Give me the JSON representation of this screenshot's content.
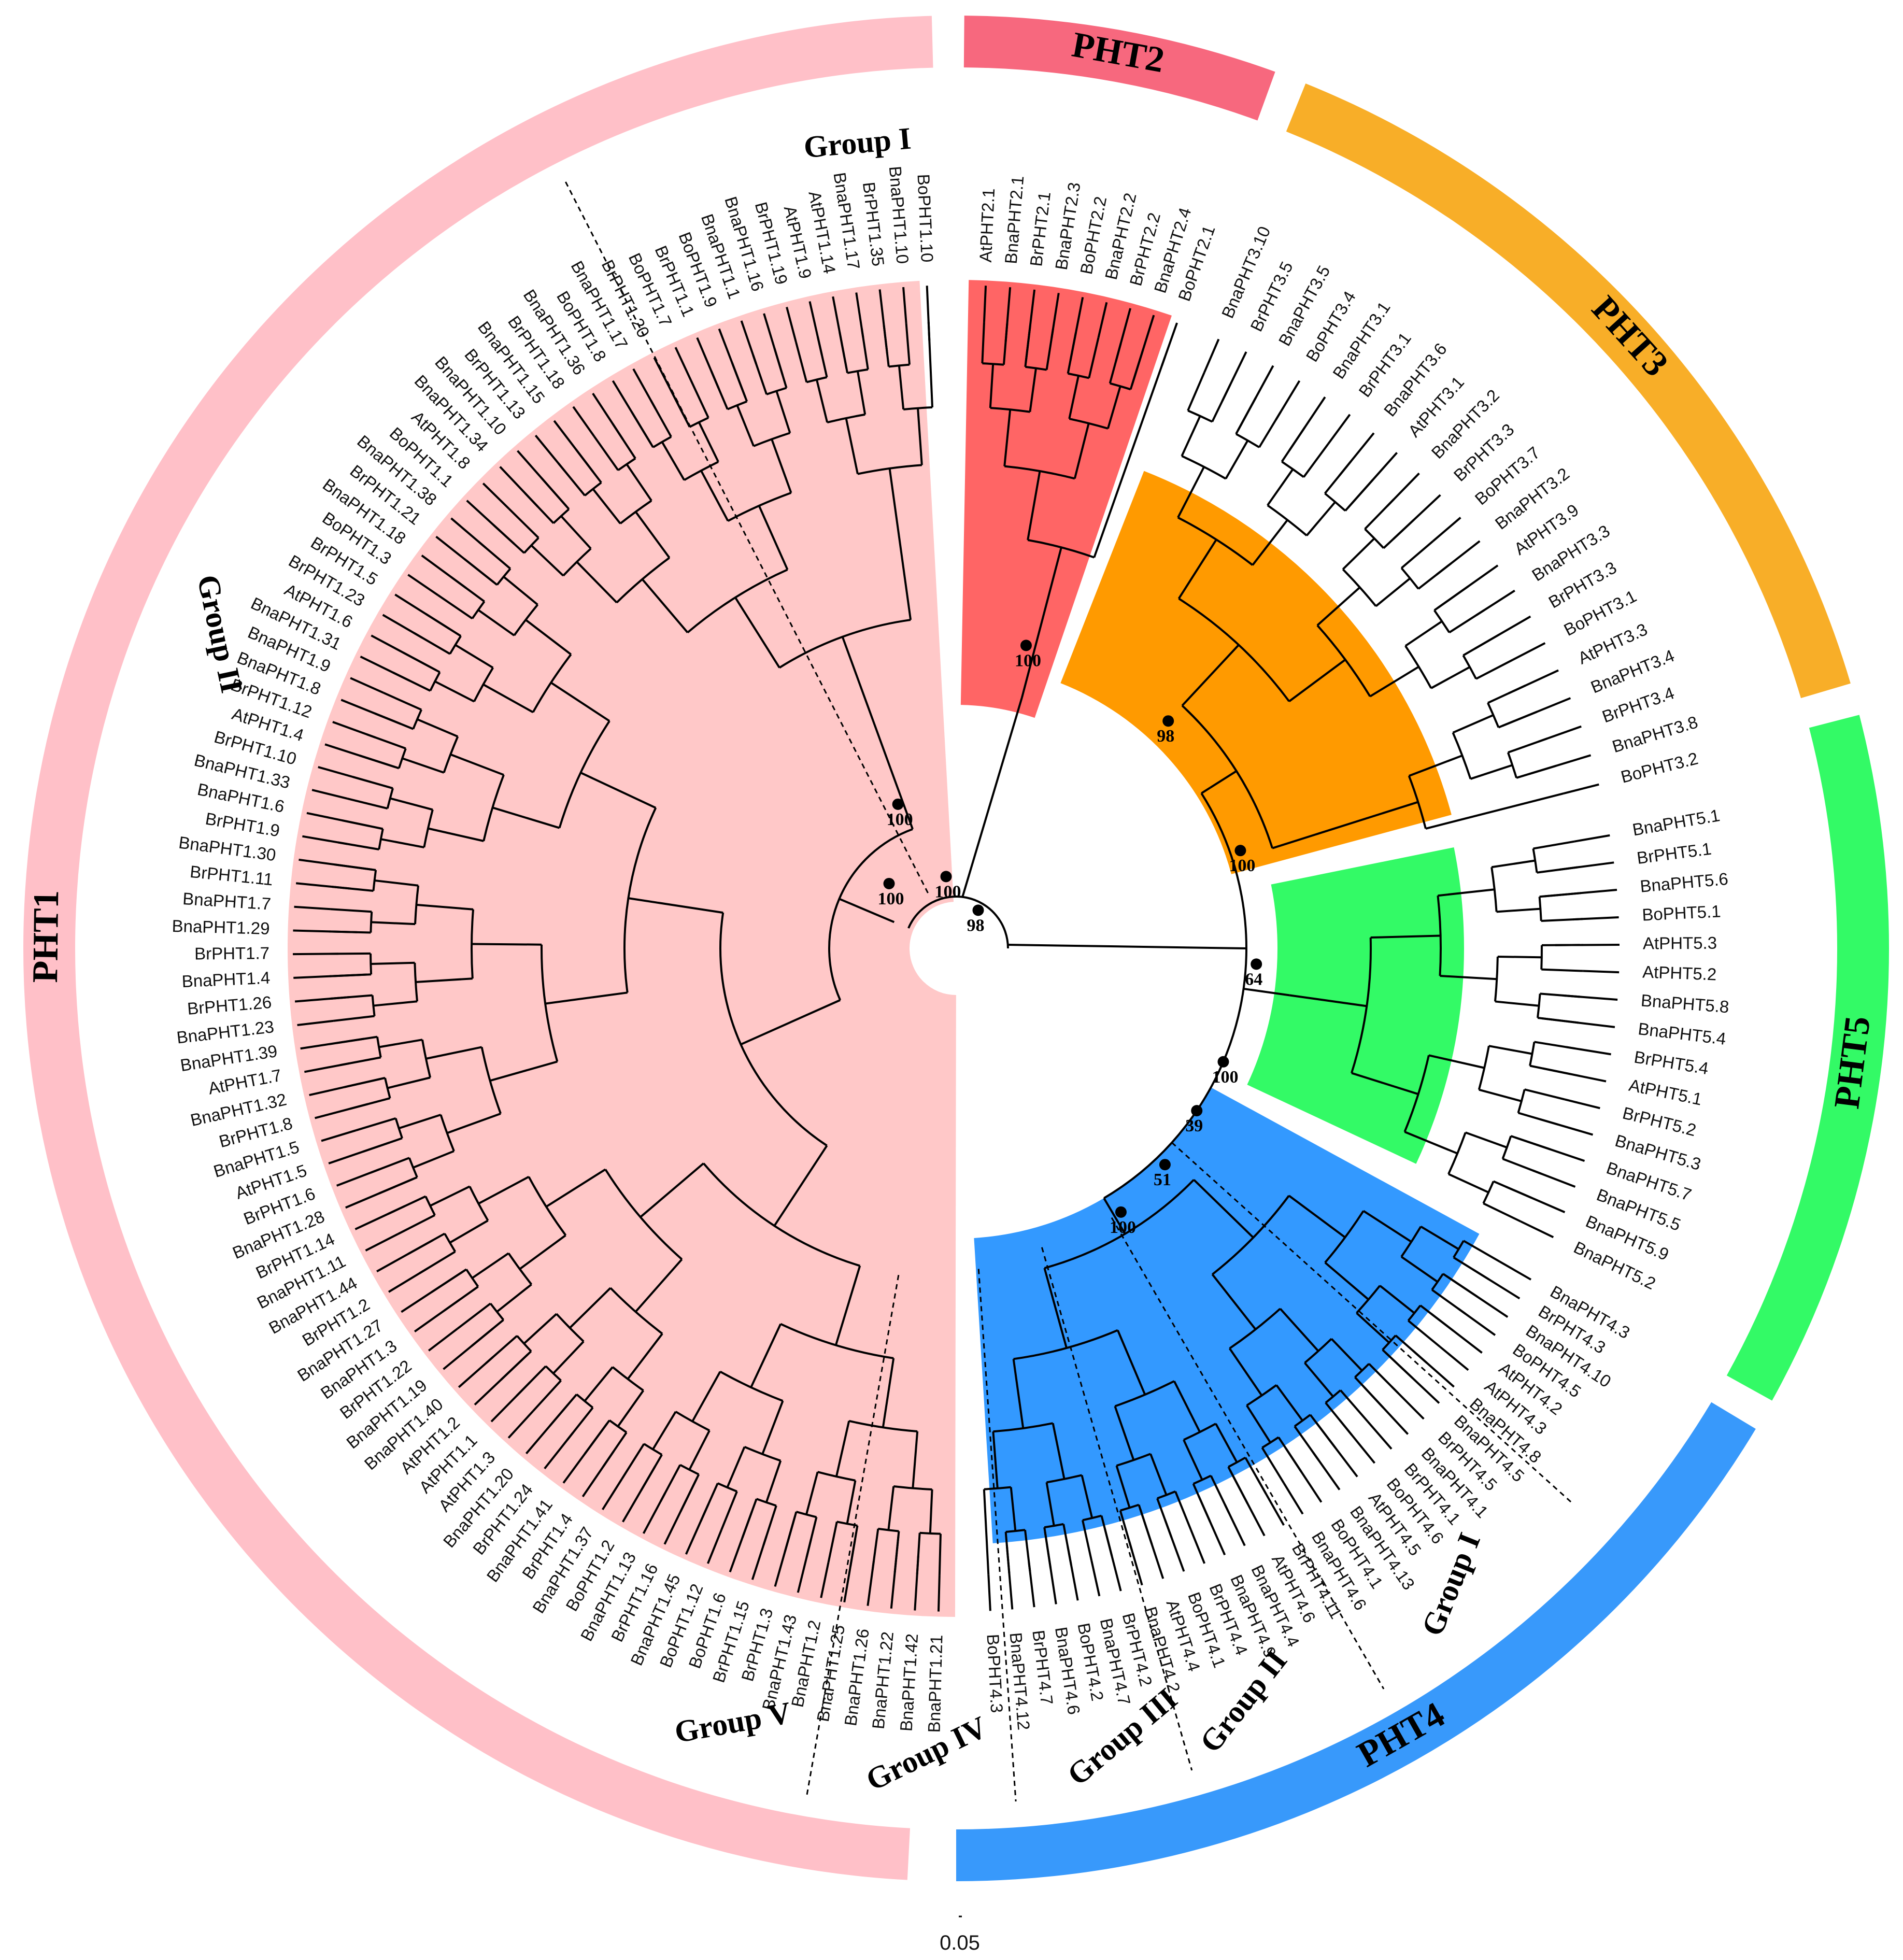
{
  "families": [
    {
      "label": "PHT1",
      "color": "#ffc0c8",
      "wedge": "#ffc8c8"
    },
    {
      "label": "PHT2",
      "color": "#f7687e",
      "wedge": "#ff6565"
    },
    {
      "label": "PHT3",
      "color": "#f8ae28",
      "wedge": "#ff9a00"
    },
    {
      "label": "PHT5",
      "color": "#33fa66",
      "wedge": "#33fa66"
    },
    {
      "label": "PHT4",
      "color": "#3899fb",
      "wedge": "#3399ff"
    }
  ],
  "groups": [
    "Group I",
    "Group II",
    "Group I",
    "Group II",
    "Group III",
    "Group IV",
    "Group V"
  ],
  "bootstraps": [
    "100",
    "100",
    "100",
    "98",
    "100",
    "98",
    "100",
    "64",
    "100",
    "39",
    "51",
    "100"
  ],
  "scale_label": "0.05",
  "leaves": {
    "pht1": [
      "BnaPHT1.21",
      "BnaPHT1.42",
      "BnaPHT1.22",
      "BnaPHT1.26",
      "BnaPHT1.25",
      "BnaPHT1.2",
      "BnaPHT1.43",
      "BrPHT1.3",
      "BrPHT1.15",
      "BoPHT1.6",
      "BoPHT1.12",
      "BnaPHT1.45",
      "BrPHT1.16",
      "BnaPHT1.13",
      "BoPHT1.2",
      "BnaPHT1.37",
      "BrPHT1.4",
      "BnaPHT1.41",
      "BrPHT1.24",
      "BnaPHT1.20",
      "AtPHT1.3",
      "AtPHT1.1",
      "AtPHT1.2",
      "BnaPHT1.40",
      "BnaPHT1.19",
      "BrPHT1.22",
      "BnaPHT1.3",
      "BnaPHT1.27",
      "BrPHT1.2",
      "BnaPHT1.44",
      "BnaPHT1.11",
      "BrPHT1.14",
      "BnaPHT1.28",
      "BrPHT1.6",
      "AtPHT1.5",
      "BnaPHT1.5",
      "BrPHT1.8",
      "BnaPHT1.32",
      "AtPHT1.7",
      "BnaPHT1.39",
      "BnaPHT1.23",
      "BrPHT1.26",
      "BnaPHT1.4",
      "BrPHT1.7",
      "BnaPHT1.29",
      "BnaPHT1.7",
      "BrPHT1.11",
      "BnaPHT1.30",
      "BrPHT1.9",
      "BnaPHT1.6",
      "BnaPHT1.33",
      "BrPHT1.10",
      "AtPHT1.4",
      "BrPHT1.12",
      "BnaPHT1.8",
      "BnaPHT1.9",
      "BnaPHT1.31",
      "AtPHT1.6",
      "BrPHT1.23",
      "BrPHT1.5",
      "BoPHT1.3",
      "BnaPHT1.18",
      "BrPHT1.21",
      "BnaPHT1.38",
      "BoPHT1.1",
      "AtPHT1.8",
      "BnaPHT1.34",
      "BnaPHT1.10",
      "BrPHT1.13",
      "BnaPHT1.15",
      "BrPHT1.18",
      "BnaPHT1.36",
      "BoPHT1.8",
      "BnaPHT1.17",
      "BrPHT1.20",
      "BoPHT1.7",
      "BrPHT1.1",
      "BoPHT1.9",
      "BnaPHT1.1",
      "BnaPHT1.16",
      "BrPHT1.19",
      "AtPHT1.9",
      "AtPHT1.14",
      "BnaPHT1.17",
      "BrPHT1.35",
      "BnaPHT1.10",
      "BoPHT1.10"
    ],
    "pht2": [
      "AtPHT2.1",
      "BnaPHT2.1",
      "BrPHT2.1",
      "BnaPHT2.3",
      "BoPHT2.2",
      "BnaPHT2.2",
      "BrPHT2.2",
      "BnaPHT2.4",
      "BoPHT2.1"
    ],
    "pht3": [
      "BnaPHT3.10",
      "BrPHT3.5",
      "BnaPHT3.5",
      "BoPHT3.4",
      "BnaPHT3.1",
      "BrPHT3.1",
      "BnaPHT3.6",
      "AtPHT3.1",
      "BnaPHT3.2",
      "BrPHT3.3",
      "BoPHT3.7",
      "BnaPHT3.2",
      "AtPHT3.9",
      "BnaPHT3.3",
      "BrPHT3.3",
      "BoPHT3.1",
      "AtPHT3.3",
      "BnaPHT3.4",
      "BrPHT3.4",
      "BnaPHT3.8",
      "BoPHT3.2"
    ],
    "pht5": [
      "BnaPHT5.1",
      "BrPHT5.1",
      "BnaPHT5.6",
      "BoPHT5.1",
      "AtPHT5.3",
      "AtPHT5.2",
      "BnaPHT5.8",
      "BnaPHT5.4",
      "BrPHT5.4",
      "AtPHT5.1",
      "BrPHT5.2",
      "BnaPHT5.3",
      "BnaPHT5.7",
      "BnaPHT5.5",
      "BnaPHT5.9",
      "BnaPHT5.2"
    ],
    "pht4": [
      "BnaPHT4.3",
      "BrPHT4.3",
      "BnaPHT4.10",
      "BoPHT4.5",
      "AtPHT4.2",
      "AtPHT4.3",
      "BnaPHT4.8",
      "BnaPHT4.5",
      "BrPHT4.5",
      "BnaPHT4.1",
      "BrPHT4.1",
      "BoPHT4.6",
      "AtPHT4.5",
      "BnaPHT4.13",
      "BoPHT4.1",
      "BnaPHT4.6",
      "BrPHT4.11",
      "AtPHT4.6",
      "BnaPHT4.4",
      "BnaPHT4.9",
      "BrPHT4.4",
      "BoPHT4.1",
      "AtPHT4.4",
      "BnaPHT4.2",
      "BrPHT4.2",
      "BnaPHT4.7",
      "BoPHT4.2",
      "BnaPHT4.6",
      "BrPHT4.7",
      "BnaPHT4.12",
      "BoPHT4.3"
    ]
  }
}
